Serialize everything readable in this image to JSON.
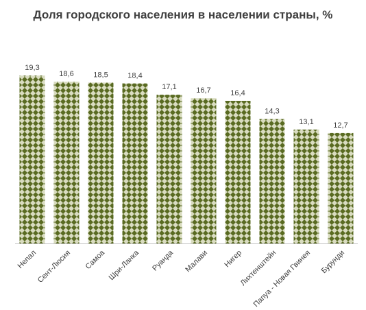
{
  "chart_data": {
    "type": "bar",
    "title": "Доля городского населения в населении страны, %",
    "xlabel": "",
    "ylabel": "",
    "categories": [
      "Непал",
      "Сент-Люсия",
      "Самоа",
      "Шри-Ланка",
      "Руанда",
      "Малави",
      "Нигер",
      "Лихтенштейн",
      "Папуа - Новая Гвинея",
      "Бурунди"
    ],
    "values": [
      19.3,
      18.6,
      18.5,
      18.4,
      17.1,
      16.7,
      16.4,
      14.3,
      13.1,
      12.7
    ],
    "value_labels": [
      "19,3",
      "18,6",
      "18,5",
      "18,4",
      "17,1",
      "16,7",
      "16,4",
      "14,3",
      "13,1",
      "12,7"
    ],
    "ylim": [
      0,
      20.5
    ],
    "grid": false,
    "legend": "none",
    "colors": {
      "bar_dark": "#5a6b22",
      "bar_light": "#d9dcc0",
      "text": "#404040",
      "axis": "#bfbfbf"
    }
  }
}
